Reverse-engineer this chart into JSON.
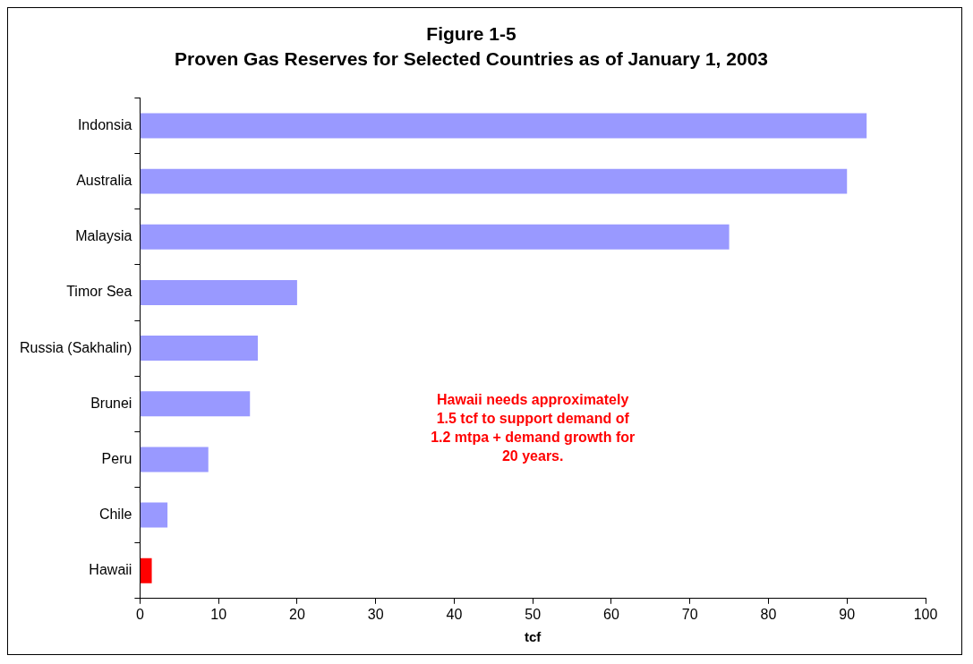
{
  "chart_data": {
    "type": "bar",
    "orientation": "horizontal",
    "title": "Figure 1-5",
    "subtitle": "Proven Gas Reserves for Selected Countries as of January 1, 2003",
    "xlabel": "tcf",
    "categories": [
      "Indonsia",
      "Australia",
      "Malaysia",
      "Timor Sea",
      "Russia (Sakhalin)",
      "Brunei",
      "Peru",
      "Chile",
      "Hawaii"
    ],
    "values": [
      92.5,
      90,
      75,
      20,
      15,
      14,
      8.7,
      3.5,
      1.5
    ],
    "colors": [
      "#9999ff",
      "#9999ff",
      "#9999ff",
      "#9999ff",
      "#9999ff",
      "#9999ff",
      "#9999ff",
      "#9999ff",
      "#ff0000"
    ],
    "xlim": [
      0,
      100
    ],
    "xticks": [
      0,
      10,
      20,
      30,
      40,
      50,
      60,
      70,
      80,
      90,
      100
    ],
    "grid": false,
    "legend": false,
    "annotations": [
      "Hawaii needs approximately 1.5 tcf to support demand of 1.2 mtpa + demand growth for 20 years."
    ]
  }
}
